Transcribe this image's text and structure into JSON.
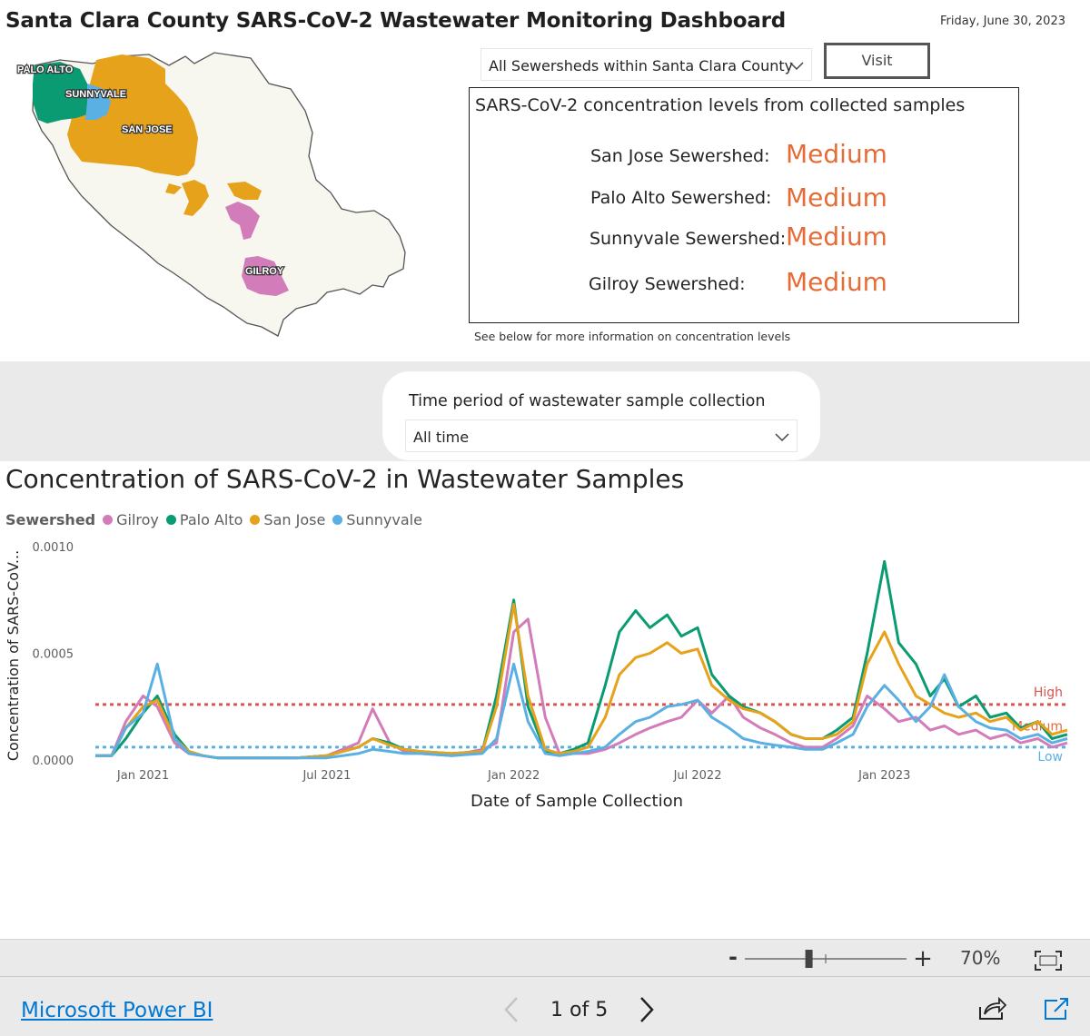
{
  "header": {
    "title": "Santa Clara County SARS-CoV-2 Wastewater Monitoring Dashboard",
    "date": "Friday, June 30, 2023"
  },
  "map": {
    "regions": [
      {
        "label": "PALO ALTO",
        "color": "#0a9b72"
      },
      {
        "label": "SUNNYVALE",
        "color": "#5ab0e3"
      },
      {
        "label": "SAN JOSE",
        "color": "#e6a21a"
      },
      {
        "label": "GILROY",
        "color": "#d37cba"
      }
    ],
    "county_fill": "#f7f6ef"
  },
  "sewershed_select": {
    "value": "All Sewersheds within Santa Clara County",
    "icon": "chevron-down-icon"
  },
  "visit_button": {
    "label": "Visit"
  },
  "levels": {
    "title": "SARS-CoV-2 concentration levels from collected samples",
    "rows": [
      {
        "label": "San Jose Sewershed:",
        "value": "Medium"
      },
      {
        "label": "Palo Alto Sewershed:",
        "value": "Medium"
      },
      {
        "label": "Sunnyvale Sewershed:",
        "value": "Medium"
      },
      {
        "label": "Gilroy Sewershed:",
        "value": "Medium"
      }
    ],
    "value_color": "#e66c37",
    "note": "See below for more information on concentration levels"
  },
  "time_filter": {
    "label": "Time period of wastewater sample collection",
    "value": "All time",
    "icon": "chevron-down-icon"
  },
  "chart_title": "Concentration of SARS-CoV-2 in Wastewater Samples",
  "chart_data": {
    "type": "line",
    "title": "Concentration of SARS-CoV-2 in Wastewater Samples",
    "xlabel": "Date of Sample Collection",
    "ylabel": "Concentration of SARS-CoV...",
    "legend_title": "Sewershed",
    "legend_position": "top-left",
    "grid": false,
    "xlim": [
      "2020-11-15",
      "2023-06-30"
    ],
    "ylim": [
      0,
      0.001
    ],
    "y_ticks": [
      "0.0000",
      "0.0005",
      "0.0010"
    ],
    "x_tick_dates": [
      "2021-01-01",
      "2021-07-01",
      "2022-01-01",
      "2022-07-01",
      "2023-01-01"
    ],
    "x_tick_labels": [
      "Jan 2021",
      "Jul 2021",
      "Jan 2022",
      "Jul 2022",
      "Jan 2023"
    ],
    "x": [
      "2020-11-15",
      "2020-12-01",
      "2020-12-15",
      "2021-01-01",
      "2021-01-15",
      "2021-02-01",
      "2021-02-15",
      "2021-03-01",
      "2021-03-15",
      "2021-04-01",
      "2021-05-01",
      "2021-06-01",
      "2021-07-01",
      "2021-08-01",
      "2021-08-15",
      "2021-09-01",
      "2021-09-15",
      "2021-10-01",
      "2021-11-01",
      "2021-12-01",
      "2021-12-15",
      "2022-01-01",
      "2022-01-15",
      "2022-02-01",
      "2022-02-15",
      "2022-03-01",
      "2022-03-15",
      "2022-04-01",
      "2022-04-15",
      "2022-05-01",
      "2022-05-15",
      "2022-06-01",
      "2022-06-15",
      "2022-07-01",
      "2022-07-15",
      "2022-08-01",
      "2022-08-15",
      "2022-09-01",
      "2022-09-15",
      "2022-10-01",
      "2022-10-15",
      "2022-11-01",
      "2022-11-15",
      "2022-12-01",
      "2022-12-15",
      "2023-01-01",
      "2023-01-15",
      "2023-02-01",
      "2023-02-15",
      "2023-03-01",
      "2023-03-15",
      "2023-04-01",
      "2023-04-15",
      "2023-05-01",
      "2023-05-15",
      "2023-06-01",
      "2023-06-15",
      "2023-06-30"
    ],
    "series": [
      {
        "name": "Gilroy",
        "color": "#d37cba",
        "values": [
          2e-05,
          2e-05,
          0.00018,
          0.0003,
          0.00025,
          8e-05,
          3e-05,
          2e-05,
          1e-05,
          1e-05,
          1e-05,
          1e-05,
          2e-05,
          8e-05,
          0.00024,
          8e-05,
          4e-05,
          3e-05,
          2e-05,
          5e-05,
          8e-05,
          0.0006,
          0.00066,
          0.0002,
          3e-05,
          3e-05,
          3e-05,
          5e-05,
          8e-05,
          0.00012,
          0.00015,
          0.00018,
          0.0002,
          0.00028,
          0.00022,
          0.0003,
          0.0002,
          0.00015,
          0.00012,
          8e-05,
          6e-05,
          6e-05,
          0.0001,
          0.00016,
          0.0003,
          0.00024,
          0.00018,
          0.0002,
          0.00014,
          0.00016,
          0.00012,
          0.00014,
          0.0001,
          0.00012,
          8e-05,
          0.0001,
          6e-05,
          8e-05
        ]
      },
      {
        "name": "Palo Alto",
        "color": "#0a9b72",
        "values": [
          2e-05,
          2e-05,
          0.0001,
          0.00022,
          0.0003,
          0.00012,
          4e-05,
          2e-05,
          1e-05,
          1e-05,
          1e-05,
          1e-05,
          2e-05,
          6e-05,
          0.0001,
          8e-05,
          5e-05,
          4e-05,
          3e-05,
          4e-05,
          0.0003,
          0.00075,
          0.00025,
          4e-05,
          3e-05,
          5e-05,
          8e-05,
          0.00035,
          0.0006,
          0.0007,
          0.00062,
          0.00068,
          0.00058,
          0.00062,
          0.0004,
          0.0003,
          0.00025,
          0.00022,
          0.00018,
          0.00012,
          0.0001,
          0.0001,
          0.00014,
          0.0002,
          0.0005,
          0.00093,
          0.00055,
          0.00045,
          0.0003,
          0.00038,
          0.00025,
          0.0003,
          0.0002,
          0.00022,
          0.00015,
          0.00018,
          0.0001,
          0.00012
        ]
      },
      {
        "name": "San Jose",
        "color": "#e6a21a",
        "values": [
          2e-05,
          2e-05,
          0.00015,
          0.00025,
          0.00028,
          0.0001,
          4e-05,
          2e-05,
          1e-05,
          1e-05,
          1e-05,
          1e-05,
          2e-05,
          6e-05,
          0.0001,
          7e-05,
          5e-05,
          4e-05,
          3e-05,
          4e-05,
          0.00025,
          0.00073,
          0.0003,
          5e-05,
          3e-05,
          4e-05,
          6e-05,
          0.0002,
          0.0004,
          0.00048,
          0.0005,
          0.00055,
          0.0005,
          0.00052,
          0.00035,
          0.00028,
          0.00024,
          0.00022,
          0.00018,
          0.00012,
          0.0001,
          0.0001,
          0.00012,
          0.00018,
          0.00045,
          0.0006,
          0.00045,
          0.0003,
          0.00026,
          0.00022,
          0.0002,
          0.00022,
          0.00018,
          0.0002,
          0.00014,
          0.00018,
          0.00012,
          0.00014
        ]
      },
      {
        "name": "Sunnyvale",
        "color": "#5ab0e3",
        "values": [
          2e-05,
          2e-05,
          0.00015,
          0.00022,
          0.00045,
          0.0001,
          3e-05,
          2e-05,
          1e-05,
          1e-05,
          1e-05,
          1e-05,
          1e-05,
          3e-05,
          5e-05,
          4e-05,
          3e-05,
          3e-05,
          2e-05,
          3e-05,
          0.0001,
          0.00045,
          0.00018,
          3e-05,
          2e-05,
          3e-05,
          4e-05,
          6e-05,
          0.00012,
          0.00018,
          0.0002,
          0.00025,
          0.00026,
          0.00028,
          0.0002,
          0.00015,
          0.0001,
          8e-05,
          7e-05,
          6e-05,
          5e-05,
          5e-05,
          8e-05,
          0.00012,
          0.00025,
          0.00035,
          0.00028,
          0.00018,
          0.00025,
          0.0004,
          0.00025,
          0.00018,
          0.00015,
          0.00014,
          0.0001,
          0.00012,
          8e-05,
          0.0001
        ]
      }
    ],
    "thresholds": [
      {
        "label": "High",
        "value": 0.00026,
        "color": "#d9534f"
      },
      {
        "label": "Medium",
        "value": 0.00016,
        "color": "#e66c37"
      },
      {
        "label": "Low",
        "value": 6e-05,
        "color": "#5ab0e3"
      }
    ]
  },
  "zoom": {
    "minus": "-",
    "plus": "+",
    "level_percent": 70,
    "level_label": "70%"
  },
  "footer": {
    "link": "Microsoft Power BI",
    "page_indicator": "1 of 5"
  }
}
